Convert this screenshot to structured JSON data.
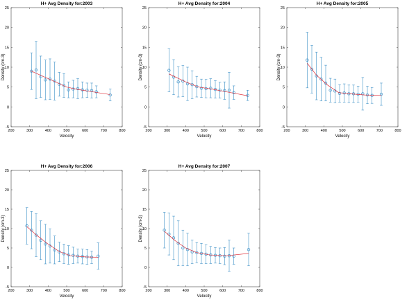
{
  "chart_data": [
    {
      "type": "scatter",
      "title": "H+ Avg Density for:2003",
      "xlabel": "Velocity",
      "ylabel": "Density (cm-3)",
      "xlim": [
        200,
        800
      ],
      "ylim": [
        -5,
        25
      ],
      "xticks": [
        200,
        300,
        400,
        500,
        600,
        700,
        800
      ],
      "yticks": [
        -5,
        0,
        5,
        10,
        15,
        20,
        25
      ],
      "points": [
        {
          "x": 310,
          "y": 9.0,
          "err": 4.6
        },
        {
          "x": 335,
          "y": 9.3,
          "err": 7.2
        },
        {
          "x": 360,
          "y": 7.6,
          "err": 5.2
        },
        {
          "x": 385,
          "y": 6.8,
          "err": 5.0
        },
        {
          "x": 410,
          "y": 7.0,
          "err": 5.1
        },
        {
          "x": 435,
          "y": 6.5,
          "err": 4.8
        },
        {
          "x": 460,
          "y": 5.7,
          "err": 3.0
        },
        {
          "x": 485,
          "y": 5.4,
          "err": 3.0
        },
        {
          "x": 510,
          "y": 4.3,
          "err": 2.0
        },
        {
          "x": 535,
          "y": 4.5,
          "err": 2.2
        },
        {
          "x": 560,
          "y": 4.6,
          "err": 2.5
        },
        {
          "x": 585,
          "y": 4.3,
          "err": 2.0
        },
        {
          "x": 610,
          "y": 4.2,
          "err": 1.8
        },
        {
          "x": 635,
          "y": 4.1,
          "err": 1.9
        },
        {
          "x": 660,
          "y": 3.8,
          "err": 1.5
        },
        {
          "x": 735,
          "y": 3.0,
          "err": 1.5
        }
      ],
      "fit": [
        [
          305,
          9.1
        ],
        [
          430,
          6.5
        ],
        [
          500,
          5.0
        ],
        [
          560,
          4.4
        ],
        [
          640,
          3.8
        ],
        [
          735,
          3.1
        ]
      ]
    },
    {
      "type": "scatter",
      "title": "H+ Avg Density for:2004",
      "xlabel": "Velocity",
      "ylabel": "Density (cm-3)",
      "xlim": [
        200,
        800
      ],
      "ylim": [
        -5,
        25
      ],
      "xticks": [
        200,
        300,
        400,
        500,
        600,
        700,
        800
      ],
      "yticks": [
        -5,
        0,
        5,
        10,
        15,
        20,
        25
      ],
      "points": [
        {
          "x": 310,
          "y": 9.2,
          "err": 5.4
        },
        {
          "x": 335,
          "y": 7.5,
          "err": 4.4
        },
        {
          "x": 360,
          "y": 6.3,
          "err": 3.8
        },
        {
          "x": 385,
          "y": 6.5,
          "err": 3.9
        },
        {
          "x": 410,
          "y": 5.8,
          "err": 4.2
        },
        {
          "x": 435,
          "y": 5.6,
          "err": 3.5
        },
        {
          "x": 460,
          "y": 5.1,
          "err": 2.6
        },
        {
          "x": 485,
          "y": 4.7,
          "err": 2.3
        },
        {
          "x": 510,
          "y": 4.6,
          "err": 2.3
        },
        {
          "x": 535,
          "y": 4.7,
          "err": 2.4
        },
        {
          "x": 560,
          "y": 4.4,
          "err": 2.2
        },
        {
          "x": 585,
          "y": 4.2,
          "err": 2.0
        },
        {
          "x": 610,
          "y": 4.1,
          "err": 2.2
        },
        {
          "x": 635,
          "y": 4.2,
          "err": 4.5
        },
        {
          "x": 660,
          "y": 3.6,
          "err": 1.7
        },
        {
          "x": 735,
          "y": 2.9,
          "err": 1.3
        }
      ],
      "fit": [
        [
          310,
          8.3
        ],
        [
          400,
          6.3
        ],
        [
          470,
          5.0
        ],
        [
          540,
          4.5
        ],
        [
          620,
          3.8
        ],
        [
          735,
          2.8
        ]
      ]
    },
    {
      "type": "scatter",
      "title": "H+ Avg Density for:2005",
      "xlabel": "Velocity",
      "ylabel": "Density (cm-3)",
      "xlim": [
        200,
        800
      ],
      "ylim": [
        -5,
        25
      ],
      "xticks": [
        200,
        300,
        400,
        500,
        600,
        700,
        800
      ],
      "yticks": [
        -5,
        0,
        5,
        10,
        15,
        20,
        25
      ],
      "points": [
        {
          "x": 310,
          "y": 11.8,
          "err": 7.0
        },
        {
          "x": 335,
          "y": 9.5,
          "err": 6.0
        },
        {
          "x": 360,
          "y": 7.8,
          "err": 6.0
        },
        {
          "x": 385,
          "y": 7.0,
          "err": 5.5
        },
        {
          "x": 410,
          "y": 6.0,
          "err": 4.5
        },
        {
          "x": 435,
          "y": 4.2,
          "err": 3.0
        },
        {
          "x": 460,
          "y": 4.0,
          "err": 3.0
        },
        {
          "x": 485,
          "y": 3.4,
          "err": 2.2
        },
        {
          "x": 510,
          "y": 3.5,
          "err": 2.3
        },
        {
          "x": 535,
          "y": 3.3,
          "err": 2.2
        },
        {
          "x": 560,
          "y": 3.3,
          "err": 2.2
        },
        {
          "x": 585,
          "y": 3.2,
          "err": 2.0
        },
        {
          "x": 610,
          "y": 3.3,
          "err": 4.1
        },
        {
          "x": 635,
          "y": 3.0,
          "err": 2.2
        },
        {
          "x": 660,
          "y": 2.9,
          "err": 2.0
        },
        {
          "x": 710,
          "y": 3.2,
          "err": 2.8
        }
      ],
      "fit": [
        [
          310,
          11.0
        ],
        [
          360,
          8.0
        ],
        [
          420,
          5.5
        ],
        [
          480,
          3.6
        ],
        [
          540,
          3.3
        ],
        [
          620,
          3.0
        ],
        [
          710,
          2.9
        ]
      ]
    },
    {
      "type": "scatter",
      "title": "H+ Avg Density for:2006",
      "xlabel": "Velocity",
      "ylabel": "Density (cm-3)",
      "xlim": [
        200,
        800
      ],
      "ylim": [
        -5,
        25
      ],
      "xticks": [
        200,
        300,
        400,
        500,
        600,
        700,
        800
      ],
      "yticks": [
        -5,
        0,
        5,
        10,
        15,
        20,
        25
      ],
      "points": [
        {
          "x": 285,
          "y": 10.7,
          "err": 4.7
        },
        {
          "x": 310,
          "y": 9.6,
          "err": 4.8
        },
        {
          "x": 335,
          "y": 8.3,
          "err": 5.5
        },
        {
          "x": 360,
          "y": 7.0,
          "err": 5.0
        },
        {
          "x": 385,
          "y": 6.0,
          "err": 5.1
        },
        {
          "x": 410,
          "y": 5.5,
          "err": 4.4
        },
        {
          "x": 435,
          "y": 4.5,
          "err": 3.6
        },
        {
          "x": 460,
          "y": 4.0,
          "err": 2.5
        },
        {
          "x": 485,
          "y": 3.5,
          "err": 2.5
        },
        {
          "x": 510,
          "y": 3.2,
          "err": 2.4
        },
        {
          "x": 535,
          "y": 3.1,
          "err": 2.1
        },
        {
          "x": 560,
          "y": 2.9,
          "err": 1.8
        },
        {
          "x": 585,
          "y": 2.8,
          "err": 1.9
        },
        {
          "x": 610,
          "y": 2.7,
          "err": 1.9
        },
        {
          "x": 635,
          "y": 2.6,
          "err": 1.6
        },
        {
          "x": 670,
          "y": 2.9,
          "err": 3.4
        }
      ],
      "fit": [
        [
          285,
          10.5
        ],
        [
          340,
          8.2
        ],
        [
          400,
          6.0
        ],
        [
          460,
          4.1
        ],
        [
          520,
          3.0
        ],
        [
          600,
          2.7
        ],
        [
          670,
          2.6
        ]
      ]
    },
    {
      "type": "scatter",
      "title": "H+ Avg Density for:2007",
      "xlabel": "Velocity",
      "ylabel": "Density (cm-3)",
      "xlim": [
        200,
        800
      ],
      "ylim": [
        -5,
        25
      ],
      "xticks": [
        200,
        300,
        400,
        500,
        600,
        700,
        800
      ],
      "yticks": [
        -5,
        0,
        5,
        10,
        15,
        20,
        25
      ],
      "points": [
        {
          "x": 285,
          "y": 9.6,
          "err": 4.6
        },
        {
          "x": 310,
          "y": 8.6,
          "err": 5.4
        },
        {
          "x": 335,
          "y": 7.6,
          "err": 5.6
        },
        {
          "x": 360,
          "y": 6.2,
          "err": 5.8
        },
        {
          "x": 385,
          "y": 5.0,
          "err": 4.6
        },
        {
          "x": 410,
          "y": 4.6,
          "err": 4.2
        },
        {
          "x": 435,
          "y": 4.0,
          "err": 3.0
        },
        {
          "x": 460,
          "y": 3.8,
          "err": 2.6
        },
        {
          "x": 485,
          "y": 3.6,
          "err": 2.6
        },
        {
          "x": 510,
          "y": 3.4,
          "err": 2.4
        },
        {
          "x": 535,
          "y": 3.2,
          "err": 2.2
        },
        {
          "x": 560,
          "y": 3.1,
          "err": 2.0
        },
        {
          "x": 585,
          "y": 3.0,
          "err": 2.0
        },
        {
          "x": 610,
          "y": 2.9,
          "err": 2.2
        },
        {
          "x": 635,
          "y": 3.0,
          "err": 4.0
        },
        {
          "x": 660,
          "y": 2.9,
          "err": 2.1
        },
        {
          "x": 740,
          "y": 4.6,
          "err": 4.2
        }
      ],
      "fit": [
        [
          285,
          9.3
        ],
        [
          340,
          7.0
        ],
        [
          400,
          5.0
        ],
        [
          460,
          3.8
        ],
        [
          530,
          3.2
        ],
        [
          620,
          3.0
        ],
        [
          740,
          3.6
        ]
      ]
    }
  ]
}
